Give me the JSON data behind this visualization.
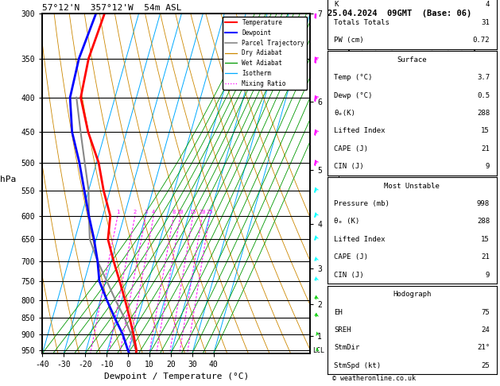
{
  "title_left": "57°12'N  357°12'W  54m ASL",
  "title_right": "25.04.2024  09GMT  (Base: 06)",
  "xlabel": "Dewpoint / Temperature (°C)",
  "ylabel_left": "hPa",
  "pressure_levels": [
    300,
    350,
    400,
    450,
    500,
    550,
    600,
    650,
    700,
    750,
    800,
    850,
    900,
    950
  ],
  "pressure_labels": [
    "300",
    "350",
    "400",
    "450",
    "500",
    "550",
    "600",
    "650",
    "700",
    "750",
    "800",
    "850",
    "900",
    "950"
  ],
  "p_min": 300,
  "p_max": 960,
  "t_min": -40,
  "t_max": 40,
  "skew_factor": 45,
  "km_ticks": [
    1,
    2,
    3,
    4,
    5,
    6,
    7
  ],
  "km_pressures": [
    902,
    802,
    705,
    600,
    492,
    384,
    278
  ],
  "temp_profile_p": [
    960,
    950,
    900,
    850,
    800,
    750,
    700,
    650,
    600,
    550,
    500,
    450,
    400,
    350,
    300
  ],
  "temp_profile_t": [
    3.7,
    3.5,
    0.0,
    -4.0,
    -8.5,
    -13.5,
    -19.0,
    -24.5,
    -26.5,
    -33.0,
    -39.0,
    -48.0,
    -56.0,
    -57.5,
    -56.0
  ],
  "dewp_profile_p": [
    960,
    950,
    900,
    850,
    800,
    750,
    700,
    650,
    600,
    550,
    500,
    450,
    400,
    350,
    300
  ],
  "dewp_profile_t": [
    0.5,
    -0.5,
    -5.0,
    -11.0,
    -17.0,
    -23.0,
    -26.5,
    -31.0,
    -36.5,
    -42.0,
    -48.0,
    -55.5,
    -61.0,
    -62.0,
    -60.0
  ],
  "parcel_p": [
    960,
    950,
    900,
    850,
    800,
    750,
    700,
    650,
    600,
    550,
    500,
    450,
    400
  ],
  "parcel_t": [
    3.7,
    3.2,
    -1.0,
    -6.5,
    -13.0,
    -19.5,
    -26.5,
    -33.0,
    -36.5,
    -40.0,
    -45.5,
    -51.5,
    -58.0
  ],
  "lcl_pressure": 953,
  "temp_color": "#ff0000",
  "dewp_color": "#0000ff",
  "parcel_color": "#888888",
  "dry_adiabat_color": "#cc8800",
  "wet_adiabat_color": "#009900",
  "isotherm_color": "#00aaff",
  "mixing_ratio_color": "#ff00ff",
  "mixing_ratio_values": [
    1,
    2,
    3,
    4,
    8,
    10,
    15,
    20,
    25
  ],
  "mixing_ratio_labels": [
    "1",
    "2",
    "3",
    "4",
    "8",
    "10",
    "15",
    "20",
    "25"
  ],
  "k_index": 4,
  "totals_totals": 31,
  "pw": "0.72",
  "surface_temp": "3.7",
  "surface_dewp": "0.5",
  "surface_theta_e": "288",
  "lifted_index": "15",
  "cape": "21",
  "cin": "9",
  "mu_pressure": "998",
  "mu_theta_e": "288",
  "mu_lifted_index": "15",
  "mu_cape": "21",
  "mu_cin": "9",
  "eh": "75",
  "sreh": "24",
  "stm_dir": "21°",
  "stm_spd": "25",
  "copyright": "© weatheronline.co.uk",
  "wind_barb_pressures": [
    300,
    350,
    400,
    450,
    500,
    550,
    600,
    650,
    700,
    750,
    800,
    850,
    900,
    950
  ],
  "wind_barb_dirs": [
    260,
    255,
    250,
    245,
    240,
    235,
    230,
    225,
    220,
    215,
    210,
    205,
    200,
    195
  ],
  "wind_barb_speeds": [
    45,
    40,
    38,
    35,
    30,
    28,
    25,
    22,
    18,
    15,
    12,
    10,
    8,
    6
  ]
}
